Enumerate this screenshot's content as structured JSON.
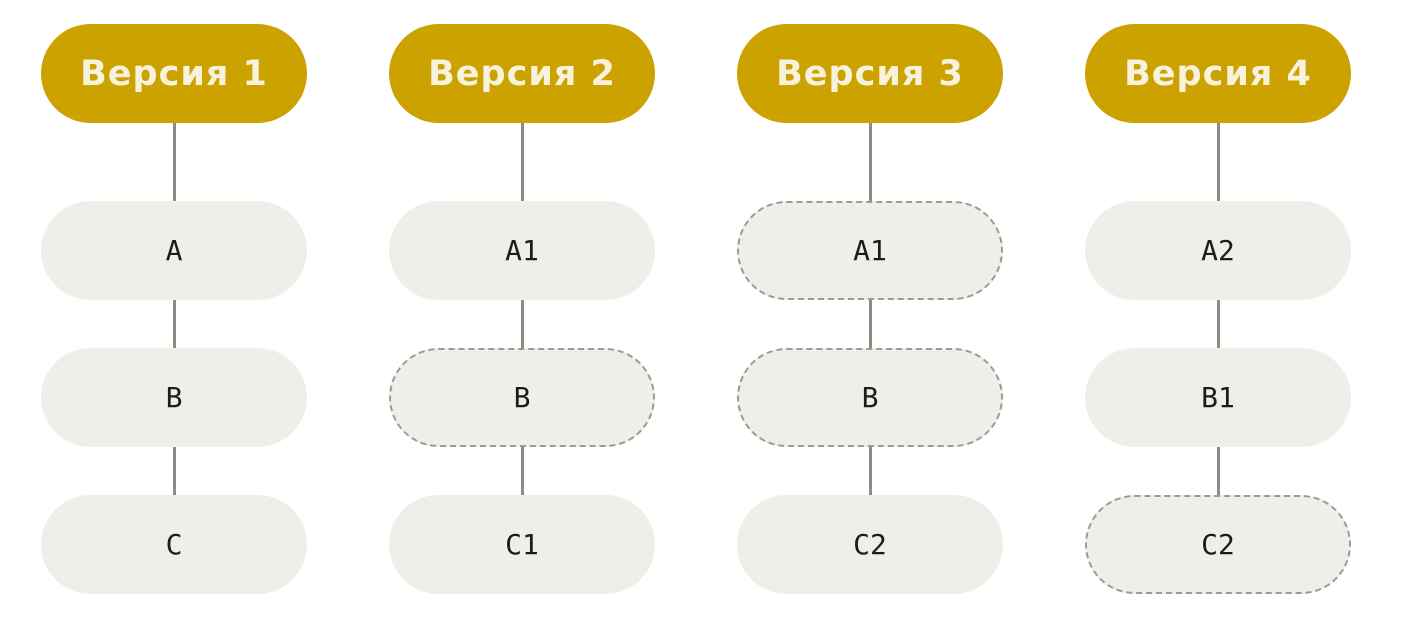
{
  "versions": [
    {
      "title": "Версия 1",
      "nodes": [
        {
          "label": "A",
          "dashed": false
        },
        {
          "label": "B",
          "dashed": false
        },
        {
          "label": "C",
          "dashed": false
        }
      ]
    },
    {
      "title": "Версия 2",
      "nodes": [
        {
          "label": "A1",
          "dashed": false
        },
        {
          "label": "B",
          "dashed": true
        },
        {
          "label": "C1",
          "dashed": false
        }
      ]
    },
    {
      "title": "Версия 3",
      "nodes": [
        {
          "label": "A1",
          "dashed": true
        },
        {
          "label": "B",
          "dashed": true
        },
        {
          "label": "C2",
          "dashed": false
        }
      ]
    },
    {
      "title": "Версия 4",
      "nodes": [
        {
          "label": "A2",
          "dashed": false
        },
        {
          "label": "B1",
          "dashed": false
        },
        {
          "label": "C2",
          "dashed": true
        }
      ]
    }
  ],
  "colors": {
    "header_fill": "#cca200",
    "header_text": "#f6f2dc",
    "node_fill": "#efeee8",
    "node_text": "#1c1c1c",
    "connector": "#8f8a82",
    "dashed_border": "#9d9a94"
  }
}
